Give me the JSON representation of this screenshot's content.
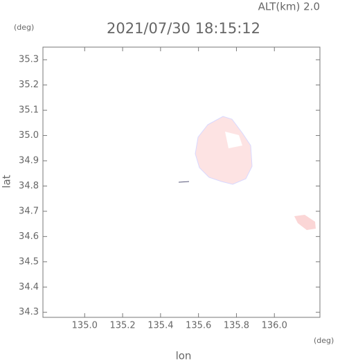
{
  "chart_data": {
    "type": "map",
    "title": "2021/07/30 18:15:12",
    "subtitle": "ALT(km) 2.0",
    "x_label": "lon",
    "y_label": "lat",
    "x_unit": "(deg)",
    "y_unit": "(deg)",
    "xlim": [
      134.78,
      136.24
    ],
    "ylim": [
      34.28,
      35.35
    ],
    "xticks": [
      {
        "value": 135,
        "label": "135.0"
      },
      135.2,
      135.4,
      135.6,
      135.8,
      {
        "value": 136,
        "label": "136.0"
      }
    ],
    "yticks": [
      34.3,
      34.4,
      34.5,
      34.6,
      34.7,
      34.8,
      34.9,
      {
        "value": 35,
        "label": "35.0"
      },
      35.1,
      35.2,
      35.3
    ]
  }
}
